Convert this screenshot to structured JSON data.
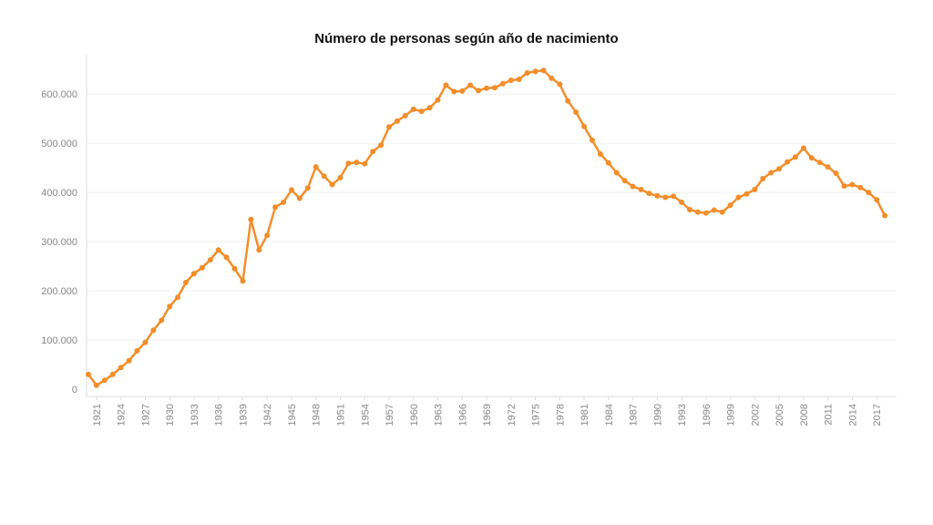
{
  "chart_data": {
    "type": "line",
    "title": "Número de personas según año de nacimiento",
    "xlabel": "",
    "ylabel": "",
    "xlim": [
      1920,
      2019
    ],
    "ylim": [
      0,
      680000
    ],
    "grid": true,
    "line_color": "#f28e2b",
    "y_ticks": [
      {
        "value": 0,
        "label": "0"
      },
      {
        "value": 100000,
        "label": "100.000"
      },
      {
        "value": 200000,
        "label": "200.000"
      },
      {
        "value": 300000,
        "label": "300.000"
      },
      {
        "value": 400000,
        "label": "400.000"
      },
      {
        "value": 500000,
        "label": "500.000"
      },
      {
        "value": 600000,
        "label": "600.000"
      }
    ],
    "x_ticks": [
      {
        "value": 1921,
        "label": "1921"
      },
      {
        "value": 1924,
        "label": "1924"
      },
      {
        "value": 1927,
        "label": "1927"
      },
      {
        "value": 1930,
        "label": "1930"
      },
      {
        "value": 1933,
        "label": "1933"
      },
      {
        "value": 1936,
        "label": "1936"
      },
      {
        "value": 1939,
        "label": "1939"
      },
      {
        "value": 1942,
        "label": "1942"
      },
      {
        "value": 1945,
        "label": "1945"
      },
      {
        "value": 1948,
        "label": "1948"
      },
      {
        "value": 1951,
        "label": "1951"
      },
      {
        "value": 1954,
        "label": "1954"
      },
      {
        "value": 1957,
        "label": "1957"
      },
      {
        "value": 1960,
        "label": "1960"
      },
      {
        "value": 1963,
        "label": "1963"
      },
      {
        "value": 1966,
        "label": "1966"
      },
      {
        "value": 1969,
        "label": "1969"
      },
      {
        "value": 1972,
        "label": "1972"
      },
      {
        "value": 1975,
        "label": "1975"
      },
      {
        "value": 1978,
        "label": "1978"
      },
      {
        "value": 1981,
        "label": "1981"
      },
      {
        "value": 1984,
        "label": "1984"
      },
      {
        "value": 1987,
        "label": "1987"
      },
      {
        "value": 1990,
        "label": "1990"
      },
      {
        "value": 1993,
        "label": "1993"
      },
      {
        "value": 1996,
        "label": "1996"
      },
      {
        "value": 1999,
        "label": "1999"
      },
      {
        "value": 2002,
        "label": "2002"
      },
      {
        "value": 2005,
        "label": "2005"
      },
      {
        "value": 2008,
        "label": "2008"
      },
      {
        "value": 2011,
        "label": "2011"
      },
      {
        "value": 2014,
        "label": "2014"
      },
      {
        "value": 2017,
        "label": "2017"
      }
    ],
    "x": [
      1920,
      1921,
      1922,
      1923,
      1924,
      1925,
      1926,
      1927,
      1928,
      1929,
      1930,
      1931,
      1932,
      1933,
      1934,
      1935,
      1936,
      1937,
      1938,
      1939,
      1940,
      1941,
      1942,
      1943,
      1944,
      1945,
      1946,
      1947,
      1948,
      1949,
      1950,
      1951,
      1952,
      1953,
      1954,
      1955,
      1956,
      1957,
      1958,
      1959,
      1960,
      1961,
      1962,
      1963,
      1964,
      1965,
      1966,
      1967,
      1968,
      1969,
      1970,
      1971,
      1972,
      1973,
      1974,
      1975,
      1976,
      1977,
      1978,
      1979,
      1980,
      1981,
      1982,
      1983,
      1984,
      1985,
      1986,
      1987,
      1988,
      1989,
      1990,
      1991,
      1992,
      1993,
      1994,
      1995,
      1996,
      1997,
      1998,
      1999,
      2000,
      2001,
      2002,
      2003,
      2004,
      2005,
      2006,
      2007,
      2008,
      2009,
      2010,
      2011,
      2012,
      2013,
      2014,
      2015,
      2016,
      2017,
      2018
    ],
    "series": [
      {
        "values": [
          30000,
          8000,
          18000,
          30000,
          44000,
          58000,
          78000,
          95000,
          120000,
          140000,
          168000,
          187000,
          217000,
          235000,
          247000,
          263000,
          283000,
          268000,
          245000,
          220000,
          345000,
          283000,
          313000,
          370000,
          380000,
          405000,
          388000,
          409000,
          452000,
          433000,
          416000,
          430000,
          459000,
          461000,
          458000,
          483000,
          496000,
          533000,
          545000,
          556000,
          569000,
          565000,
          572000,
          588000,
          618000,
          605000,
          606000,
          618000,
          607000,
          612000,
          613000,
          621000,
          628000,
          630000,
          643000,
          646000,
          648000,
          632000,
          620000,
          586000,
          563000,
          534000,
          506000,
          478000,
          460000,
          440000,
          424000,
          412000,
          406000,
          398000,
          393000,
          390000,
          392000,
          380000,
          365000,
          360000,
          358000,
          364000,
          360000,
          374000,
          390000,
          397000,
          406000,
          428000,
          440000,
          448000,
          462000,
          472000,
          490000,
          470000,
          461000,
          452000,
          439000,
          413000,
          416000,
          410000,
          400000,
          385000,
          353000
        ]
      }
    ]
  }
}
